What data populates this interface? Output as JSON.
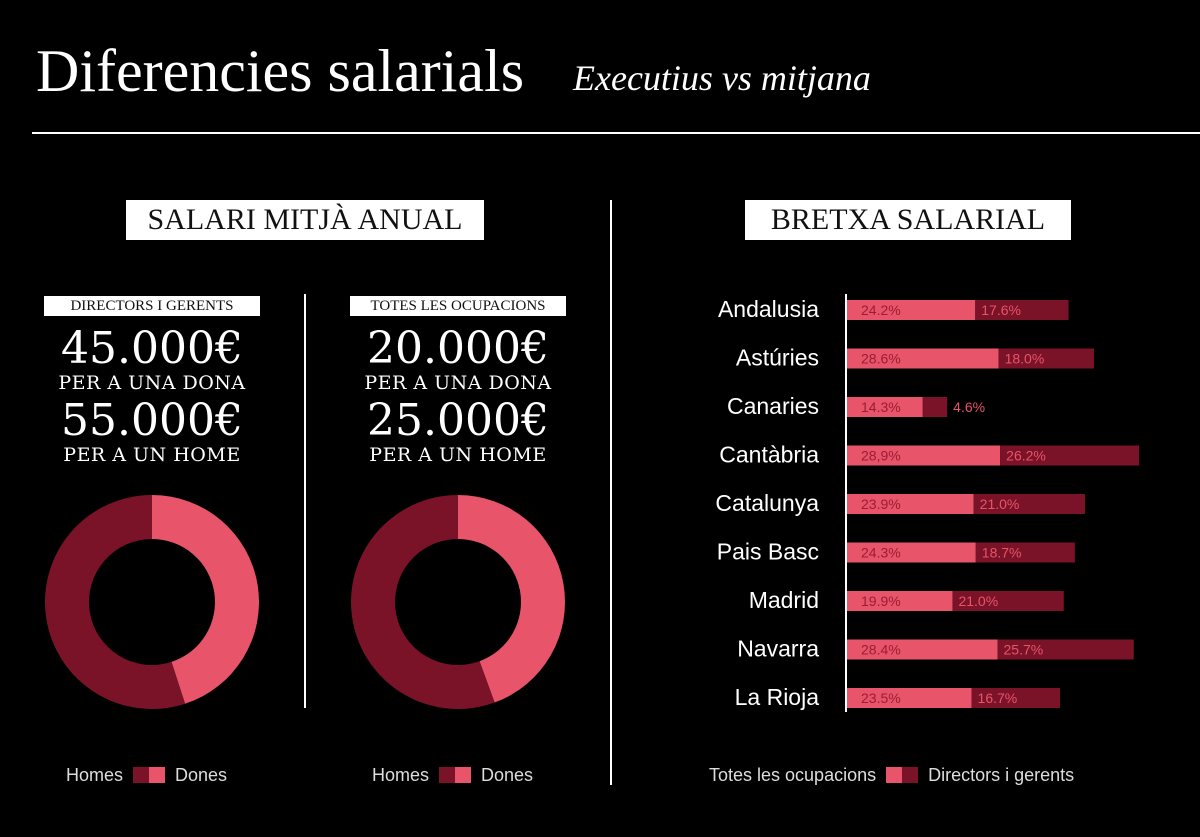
{
  "header": {
    "title": "Diferencies salarials",
    "subtitle": "Executius vs mitjana"
  },
  "left_section": {
    "label": "SALARI MITJÀ ANUAL",
    "panels": [
      {
        "label": "DIRECTORS I GERENTS",
        "woman_amount": "45.000€",
        "woman_text": "PER A UNA DONA",
        "man_amount": "55.000€",
        "man_text": "PER A UN HOME"
      },
      {
        "label": "TOTES LES OCUPACIONS",
        "woman_amount": "20.000€",
        "woman_text": "PER A UNA DONA",
        "man_amount": "25.000€",
        "man_text": "PER A UN HOME"
      }
    ],
    "legend": {
      "homes": "Homes",
      "dones": "Dones"
    }
  },
  "right_section": {
    "label": "BRETXA SALARIAL",
    "legend": {
      "a": "Totes les ocupacions",
      "b": "Directors i gerents"
    }
  },
  "colors": {
    "homes": "#7a1228",
    "dones": "#e8546a",
    "homes_stripe": "#8b1a30"
  },
  "chart_data": [
    {
      "type": "pie",
      "categories": [
        "Homes",
        "Dones"
      ],
      "values": [
        55000,
        45000
      ]
    },
    {
      "type": "pie",
      "categories": [
        "Homes",
        "Dones"
      ],
      "values": [
        25000,
        20000
      ]
    },
    {
      "type": "bar",
      "orientation": "horizontal",
      "stacked": true,
      "categories": [
        "Andalusia",
        "Astúries",
        "Canaries",
        "Cantàbria",
        "Catalunya",
        "Pais Basc",
        "Madrid",
        "Navarra",
        "La Rioja"
      ],
      "series": [
        {
          "name": "Totes les ocupacions",
          "values": [
            24.2,
            28.6,
            14.3,
            28.9,
            23.9,
            24.3,
            19.9,
            28.4,
            23.5
          ],
          "labels": [
            "24.2%",
            "28.6%",
            "14.3%",
            "28,9%",
            "23.9%",
            "24.3%",
            "19.9%",
            "28.4%",
            "23.5%"
          ]
        },
        {
          "name": "Directors i gerents",
          "values": [
            17.6,
            18.0,
            4.6,
            26.2,
            21.0,
            18.7,
            21.0,
            25.7,
            16.7
          ],
          "labels": [
            "17.6%",
            "18.0%",
            "4.6%",
            "26.2%",
            "21.0%",
            "18.7%",
            "21.0%",
            "25.7%",
            "16.7%"
          ]
        }
      ]
    }
  ]
}
